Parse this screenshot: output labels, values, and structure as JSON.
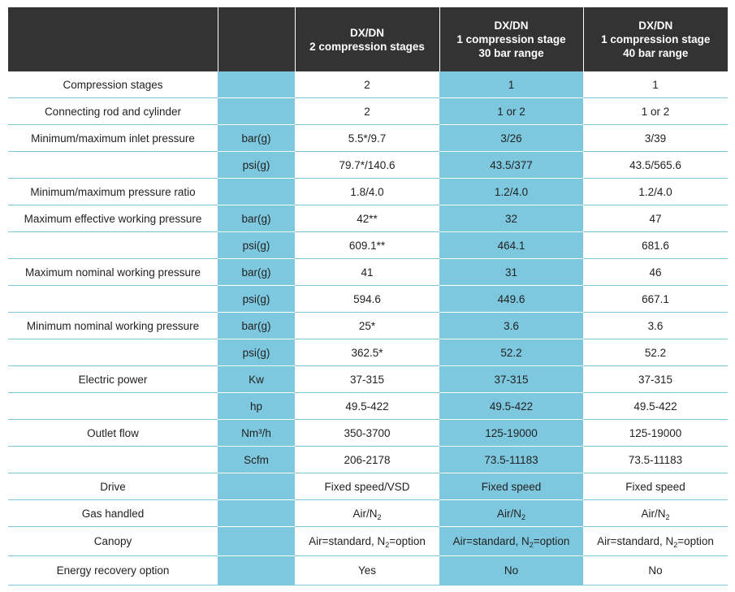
{
  "table": {
    "headers": [
      [],
      [],
      [
        "DX/DN",
        "2 compression stages"
      ],
      [
        "DX/DN",
        "1 compression stage",
        "30 bar range"
      ],
      [
        "DX/DN",
        "1 compression stage",
        "40 bar range"
      ]
    ],
    "rows": [
      {
        "label": "Compression stages",
        "unit": "",
        "values": [
          "2",
          "1",
          "1"
        ]
      },
      {
        "label": "Connecting rod and cylinder",
        "unit": "",
        "values": [
          "2",
          "1 or 2",
          "1 or 2"
        ]
      },
      {
        "label": "Minimum/maximum inlet pressure",
        "unit": "bar(g)",
        "values": [
          "5.5*/9.7",
          "3/26",
          "3/39"
        ]
      },
      {
        "label": "",
        "unit": "psi(g)",
        "values": [
          "79.7*/140.6",
          "43.5/377",
          "43.5/565.6"
        ]
      },
      {
        "label": "Minimum/maximum pressure ratio",
        "unit": "",
        "values": [
          "1.8/4.0",
          "1.2/4.0",
          "1.2/4.0"
        ]
      },
      {
        "label": "Maximum effective working pressure",
        "unit": "bar(g)",
        "values": [
          "42**",
          "32",
          "47"
        ]
      },
      {
        "label": "",
        "unit": "psi(g)",
        "values": [
          "609.1**",
          "464.1",
          "681.6"
        ]
      },
      {
        "label": "Maximum nominal working pressure",
        "unit": "bar(g)",
        "values": [
          "41",
          "31",
          "46"
        ]
      },
      {
        "label": "",
        "unit": "psi(g)",
        "values": [
          "594.6",
          "449.6",
          "667.1"
        ]
      },
      {
        "label": "Minimum nominal working pressure",
        "unit": "bar(g)",
        "values": [
          "25*",
          "3.6",
          "3.6"
        ]
      },
      {
        "label": "",
        "unit": "psi(g)",
        "values": [
          "362.5*",
          "52.2",
          "52.2"
        ]
      },
      {
        "label": "Electric power",
        "unit": "Kw",
        "values": [
          "37-315",
          "37-315",
          "37-315"
        ]
      },
      {
        "label": "",
        "unit": "hp",
        "values": [
          "49.5-422",
          "49.5-422",
          "49.5-422"
        ]
      },
      {
        "label": "Outlet flow",
        "unit": "Nm³/h",
        "values": [
          "350-3700",
          "125-19000",
          "125-19000"
        ]
      },
      {
        "label": "",
        "unit": "Scfm",
        "values": [
          "206-2178",
          "73.5-11183",
          "73.5-11183"
        ]
      },
      {
        "label": "Drive",
        "unit": "",
        "values": [
          "Fixed speed/VSD",
          "Fixed speed",
          "Fixed speed"
        ]
      }
    ],
    "gas_row": {
      "label": "Gas handled",
      "unit": "",
      "prefix": "Air/N",
      "sub": "2",
      "suffix": ""
    },
    "canopy_row": {
      "label": "Canopy",
      "unit": "",
      "prefix": "Air=standard, N",
      "sub": "2",
      "suffix": "=option"
    },
    "energy_row": {
      "label": "Energy recovery option",
      "unit": "",
      "values": [
        "Yes",
        "No",
        "No"
      ]
    }
  }
}
